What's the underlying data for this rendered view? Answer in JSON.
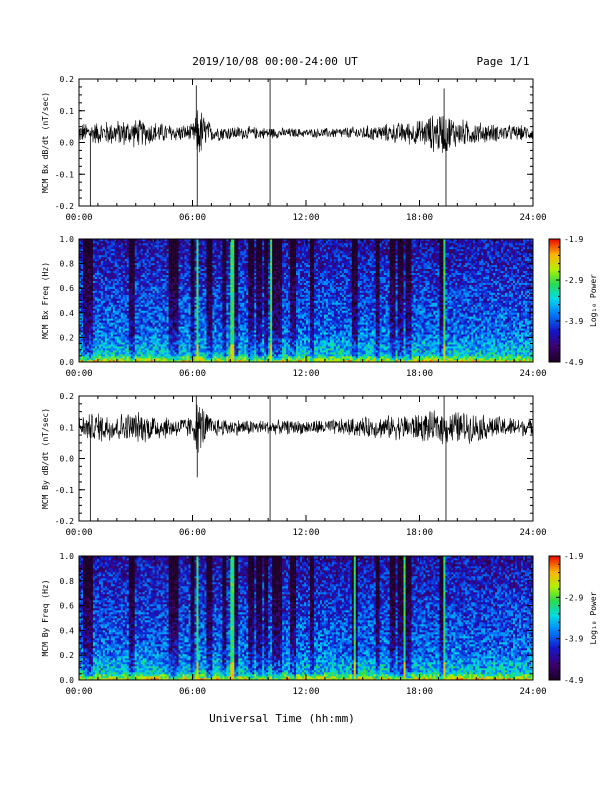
{
  "header": {
    "date_range": "2019/10/08  00:00-24:00 UT",
    "page_label": "Page 1/1"
  },
  "colors": {
    "trace": "#000000",
    "background": "#ffffff"
  },
  "chart_data": [
    {
      "type": "line",
      "title": "",
      "ylabel": "MCM Bx dB/dt (nT/sec)",
      "xlabel": "",
      "xlim": [
        0,
        24
      ],
      "ylim": [
        -0.2,
        0.2
      ],
      "x_ticks": [
        "00:00",
        "06:00",
        "12:00",
        "18:00",
        "24:00"
      ],
      "y_ticks": [
        "-0.2",
        "-0.1",
        "0.0",
        "0.1",
        "0.2"
      ],
      "baseline": 0.03,
      "envelope": [
        {
          "x": 0,
          "amp": 0.035
        },
        {
          "x": 1,
          "amp": 0.04
        },
        {
          "x": 2,
          "amp": 0.045
        },
        {
          "x": 3,
          "amp": 0.05
        },
        {
          "x": 4,
          "amp": 0.04
        },
        {
          "x": 5,
          "amp": 0.03
        },
        {
          "x": 6,
          "amp": 0.03
        },
        {
          "x": 6.3,
          "amp": 0.1
        },
        {
          "x": 7,
          "amp": 0.03
        },
        {
          "x": 8,
          "amp": 0.025
        },
        {
          "x": 10,
          "amp": 0.02
        },
        {
          "x": 12,
          "amp": 0.015
        },
        {
          "x": 14,
          "amp": 0.02
        },
        {
          "x": 16,
          "amp": 0.03
        },
        {
          "x": 18,
          "amp": 0.045
        },
        {
          "x": 19.2,
          "amp": 0.08
        },
        {
          "x": 20,
          "amp": 0.05
        },
        {
          "x": 22,
          "amp": 0.03
        },
        {
          "x": 24,
          "amp": 0.025
        }
      ],
      "spikes": [
        {
          "x": 0.6,
          "y": -0.2
        },
        {
          "x": 6.2,
          "y": 0.18
        },
        {
          "x": 6.25,
          "y": -0.2
        },
        {
          "x": 10.1,
          "y": 0.2
        },
        {
          "x": 10.1,
          "y": -0.2
        },
        {
          "x": 19.3,
          "y": 0.17
        },
        {
          "x": 19.4,
          "y": -0.2
        }
      ]
    },
    {
      "type": "heatmap",
      "title": "",
      "ylabel": "MCM Bx Freq (Hz)",
      "xlabel": "",
      "xlim": [
        0,
        24
      ],
      "ylim": [
        0,
        1.0
      ],
      "x_ticks": [
        "00:00",
        "06:00",
        "12:00",
        "18:00",
        "24:00"
      ],
      "y_ticks": [
        "0.0",
        "0.2",
        "0.4",
        "0.6",
        "0.8",
        "1.0"
      ],
      "colorbar": {
        "label": "Log₁₀ Power",
        "ticks": [
          "-1.9",
          "-2.9",
          "-3.9",
          "-4.9"
        ],
        "range": [
          -4.9,
          -1.9
        ]
      },
      "dark_columns": [
        0.4,
        0.6,
        2.8,
        4.9,
        5.1,
        6.0,
        6.9,
        7.7,
        8.3,
        9.1,
        9.5,
        9.9,
        10.3,
        10.6,
        11.3,
        12.3,
        14.6,
        15.8,
        16.6,
        17.0,
        17.4,
        19.2
      ],
      "bright_lines": [
        6.3,
        8.1,
        10.2,
        19.3
      ]
    },
    {
      "type": "line",
      "title": "",
      "ylabel": "MCM By dB/dt (nT/sec)",
      "xlabel": "",
      "xlim": [
        0,
        24
      ],
      "ylim": [
        -0.2,
        0.2
      ],
      "x_ticks": [
        "00:00",
        "06:00",
        "12:00",
        "18:00",
        "24:00"
      ],
      "y_ticks": [
        "-0.2",
        "-0.1",
        "0.0",
        "0.1",
        "0.2"
      ],
      "baseline": 0.1,
      "envelope": [
        {
          "x": 0,
          "amp": 0.04
        },
        {
          "x": 1,
          "amp": 0.055
        },
        {
          "x": 2,
          "amp": 0.05
        },
        {
          "x": 3,
          "amp": 0.055
        },
        {
          "x": 4,
          "amp": 0.05
        },
        {
          "x": 5,
          "amp": 0.035
        },
        {
          "x": 6,
          "amp": 0.04
        },
        {
          "x": 6.3,
          "amp": 0.1
        },
        {
          "x": 7,
          "amp": 0.035
        },
        {
          "x": 8,
          "amp": 0.03
        },
        {
          "x": 10,
          "amp": 0.025
        },
        {
          "x": 12,
          "amp": 0.025
        },
        {
          "x": 14,
          "amp": 0.03
        },
        {
          "x": 16,
          "amp": 0.04
        },
        {
          "x": 18,
          "amp": 0.05
        },
        {
          "x": 19.2,
          "amp": 0.06
        },
        {
          "x": 20,
          "amp": 0.06
        },
        {
          "x": 22,
          "amp": 0.04
        },
        {
          "x": 24,
          "amp": 0.03
        }
      ],
      "spikes": [
        {
          "x": 0.6,
          "y": -0.2
        },
        {
          "x": 6.2,
          "y": 0.2
        },
        {
          "x": 6.25,
          "y": -0.06
        },
        {
          "x": 10.1,
          "y": 0.2
        },
        {
          "x": 10.1,
          "y": -0.2
        },
        {
          "x": 19.3,
          "y": 0.2
        },
        {
          "x": 19.4,
          "y": -0.2
        }
      ]
    },
    {
      "type": "heatmap",
      "title": "",
      "ylabel": "MCM By Freq (Hz)",
      "xlabel": "",
      "xlim": [
        0,
        24
      ],
      "ylim": [
        0,
        1.0
      ],
      "x_ticks": [
        "00:00",
        "06:00",
        "12:00",
        "18:00",
        "24:00"
      ],
      "y_ticks": [
        "0.0",
        "0.2",
        "0.4",
        "0.6",
        "0.8",
        "1.0"
      ],
      "colorbar": {
        "label": "Log₁₀ Power",
        "ticks": [
          "-1.9",
          "-2.9",
          "-3.9",
          "-4.9"
        ],
        "range": [
          -4.9,
          -1.9
        ]
      },
      "dark_columns": [
        0.4,
        0.6,
        2.8,
        4.9,
        5.1,
        6.0,
        6.9,
        7.7,
        8.3,
        9.1,
        9.5,
        9.9,
        10.3,
        10.6,
        11.3,
        12.3,
        14.6,
        15.8,
        16.6,
        17.0,
        17.4,
        19.2
      ],
      "bright_lines": [
        6.3,
        8.1,
        14.6,
        17.2,
        19.3
      ]
    }
  ],
  "footer": {
    "xlabel": "Universal Time (hh:mm)"
  }
}
